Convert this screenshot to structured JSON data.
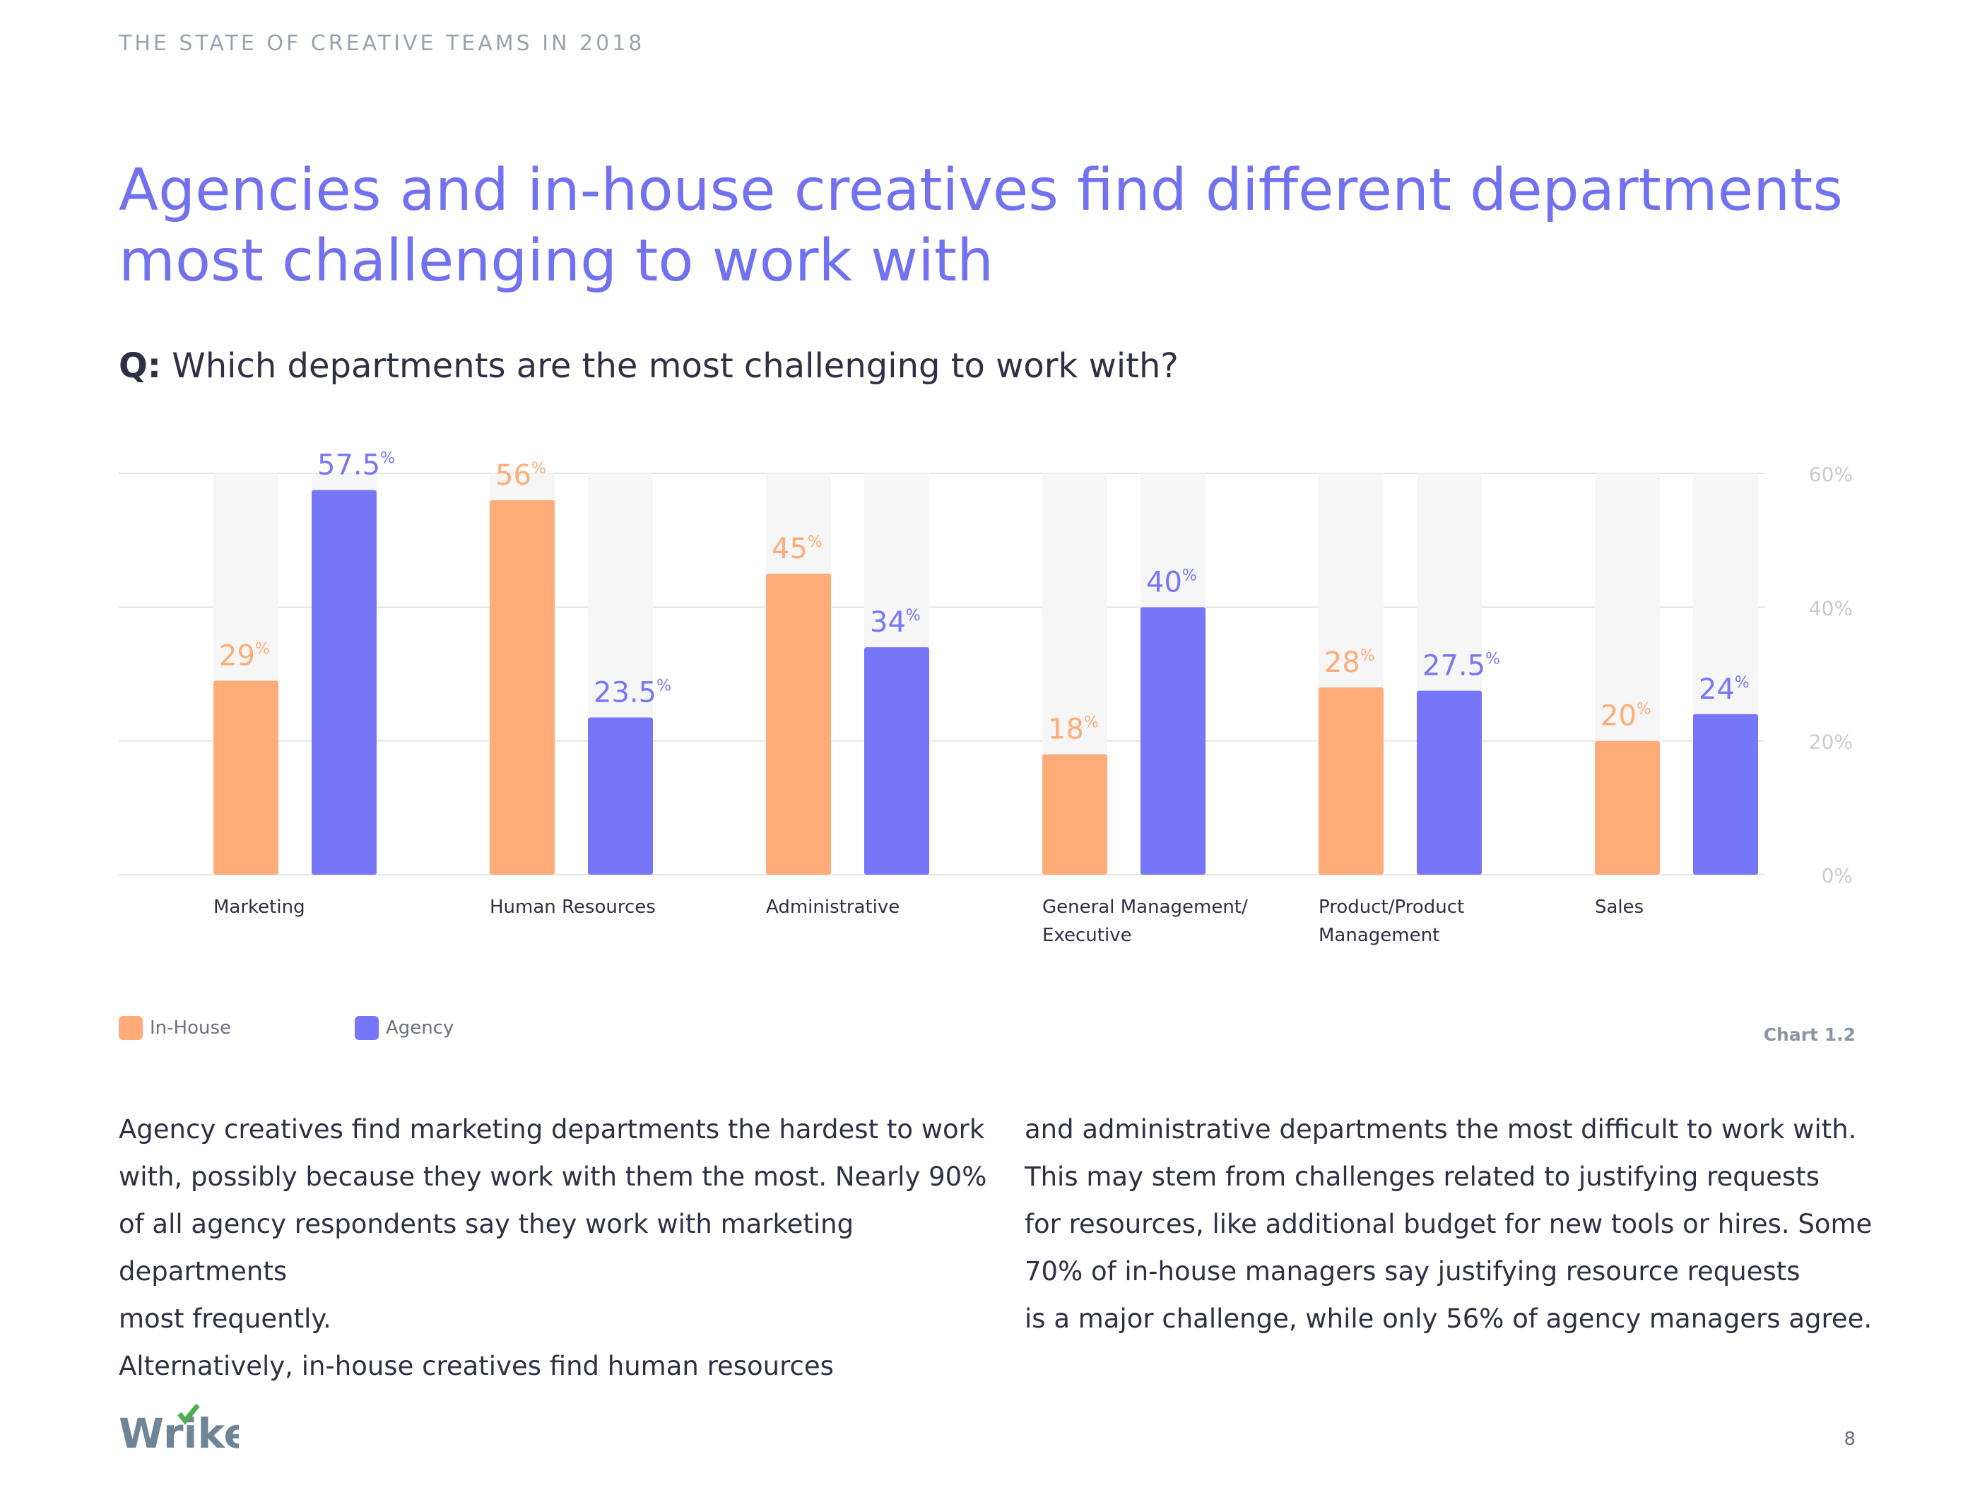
{
  "header": {
    "eyebrow": "THE STATE OF CREATIVE TEAMS IN 2018"
  },
  "headline": "Agencies and in-house creatives find different departments most challenging to work with",
  "question": {
    "prefix": "Q:",
    "text": " Which departments are the most challenging to work with?"
  },
  "chart_data": {
    "type": "bar",
    "categories": [
      "Marketing",
      "Human Resources",
      "Administrative",
      "General Management/ Executive",
      "Product/Product Management",
      "Sales"
    ],
    "category_lines": [
      [
        "Marketing"
      ],
      [
        "Human Resources"
      ],
      [
        "Administrative"
      ],
      [
        "General Management/",
        "Executive"
      ],
      [
        "Product/Product",
        "Management"
      ],
      [
        "Sales"
      ]
    ],
    "series": [
      {
        "name": "In-House",
        "values": [
          29,
          56,
          45,
          18,
          28,
          20
        ],
        "color": "#ffac78"
      },
      {
        "name": "Agency",
        "values": [
          57.5,
          23.5,
          34,
          40,
          27.5,
          24
        ],
        "color": "#7676f9"
      }
    ],
    "value_suffix": "%",
    "yticks": [
      "0%",
      "20%",
      "40%",
      "60%"
    ],
    "ytick_values": [
      0,
      20,
      40,
      60
    ],
    "ylim": [
      0,
      60
    ],
    "grid": true,
    "legend": "bottom-left",
    "track_color": "#f6f6f6"
  },
  "legend": {
    "items": [
      {
        "label": "In-House",
        "color": "#ffac78"
      },
      {
        "label": "Agency",
        "color": "#7676f9"
      }
    ]
  },
  "chart_id": "Chart 1.2",
  "body": {
    "left": [
      "Agency creatives find marketing departments the hardest to work",
      "with, possibly because they work with them the most. Nearly 90%",
      "of all agency respondents say they work with marketing departments",
      "most frequently.",
      "Alternatively, in-house creatives find human resources"
    ],
    "right": [
      "and administrative departments the most difficult to work with.",
      "This may stem from challenges related to justifying requests",
      "for resources, like additional budget for new tools or hires. Some",
      "70% of in-house managers say justifying resource requests",
      "is a major challenge, while only 56% of agency managers agree."
    ]
  },
  "footer": {
    "logo_text": "Wrike",
    "page_number": "8"
  },
  "colors": {
    "accent": "#7272f0",
    "text": "#2f3044",
    "grid": "#e4e4e4",
    "logo": "#6f8595",
    "logo_check": "#4caf50"
  }
}
